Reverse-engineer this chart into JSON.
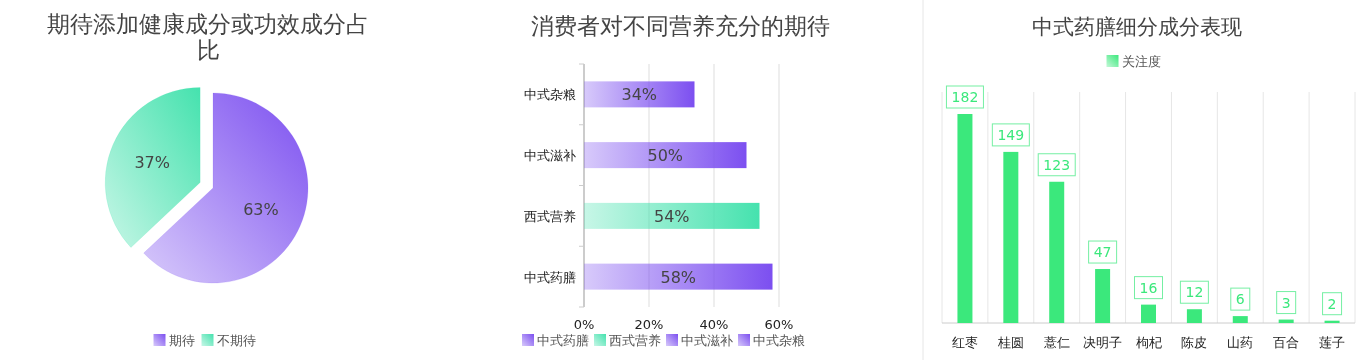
{
  "chart_data": [
    {
      "type": "pie",
      "title": "期待添加健康成分或功效成分占比",
      "categories": [
        "期待",
        "不期待"
      ],
      "values": [
        63,
        37
      ],
      "colors": [
        "#7c4ff0",
        "#45e2ae"
      ],
      "value_labels": [
        "63%",
        "37%"
      ],
      "legend": "bottom"
    },
    {
      "type": "bar",
      "orientation": "horizontal",
      "title": "消费者对不同营养充分的期待",
      "categories": [
        "中式杂粮",
        "中式滋补",
        "西式营养",
        "中式药膳"
      ],
      "series": [
        {
          "name": "中式药膳",
          "color": "#7c4ff0",
          "values": [
            null,
            null,
            null,
            58
          ],
          "value_labels": [
            null,
            null,
            null,
            "58%"
          ]
        },
        {
          "name": "西式营养",
          "color": "#45e2ae",
          "values": [
            null,
            null,
            54,
            null
          ],
          "value_labels": [
            null,
            null,
            "54%",
            null
          ]
        },
        {
          "name": "中式滋补",
          "color": "#7c4ff0",
          "values": [
            null,
            50,
            null,
            null
          ],
          "value_labels": [
            null,
            "50%",
            null,
            null
          ]
        },
        {
          "name": "中式杂粮",
          "color": "#7c4ff0",
          "values": [
            34,
            null,
            null,
            null
          ],
          "value_labels": [
            "34%",
            null,
            null,
            null
          ]
        }
      ],
      "xlim": [
        0,
        60
      ],
      "xticks": [
        {
          "value": 0,
          "label": "0%"
        },
        {
          "value": 20,
          "label": "20%"
        },
        {
          "value": 40,
          "label": "40%"
        },
        {
          "value": 60,
          "label": "60%"
        }
      ],
      "grid": "x",
      "legend": "bottom"
    },
    {
      "type": "bar",
      "title": "中式药膳细分成分表现",
      "categories": [
        "红枣",
        "桂圆",
        "薏仁",
        "决明子",
        "枸杞",
        "陈皮",
        "山药",
        "百合",
        "莲子"
      ],
      "series": [
        {
          "name": "关注度",
          "color": "#3be87c",
          "values": [
            182,
            149,
            123,
            47,
            16,
            12,
            6,
            3,
            2
          ]
        }
      ],
      "data_labels": true,
      "grid": "x",
      "legend": "top"
    }
  ]
}
